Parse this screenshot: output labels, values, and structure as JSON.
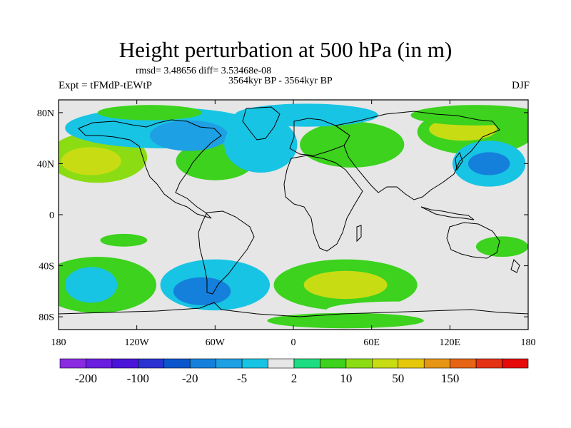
{
  "title": "Height perturbation at 500 hPa (in m)",
  "stats": "rmsd= 3.48656 diff= 3.53468e-08",
  "period": "3564kyr BP - 3564kyr BP",
  "experiment": "Expt = tFMdP-tEWtP",
  "season": "DJF",
  "map": {
    "lon_range": [
      -180,
      180
    ],
    "lat_range": [
      -90,
      90
    ],
    "projection": "cylindrical equidistant",
    "background_color": "#e6e6e6",
    "lon_ticks": [
      {
        "value": -180,
        "label": "180"
      },
      {
        "value": -120,
        "label": "120W"
      },
      {
        "value": -60,
        "label": "60W"
      },
      {
        "value": 0,
        "label": "0"
      },
      {
        "value": 60,
        "label": "60E"
      },
      {
        "value": 120,
        "label": "120E"
      },
      {
        "value": 180,
        "label": "180"
      }
    ],
    "lat_ticks": [
      {
        "value": 80,
        "label": "80N"
      },
      {
        "value": 40,
        "label": "40N"
      },
      {
        "value": 0,
        "label": "0"
      },
      {
        "value": -40,
        "label": "40S"
      },
      {
        "value": -80,
        "label": "80S"
      }
    ]
  },
  "colorbar": {
    "colors": [
      "#8a2be2",
      "#6a1ee0",
      "#4b14d8",
      "#2a32d2",
      "#0a56cc",
      "#1480dc",
      "#1ea0e4",
      "#18c4e4",
      "#e6e6e6",
      "#1edc82",
      "#3cd21e",
      "#8cdc14",
      "#c8dc14",
      "#e6c80a",
      "#e69614",
      "#e66414",
      "#e63214",
      "#e60a0a"
    ],
    "labels": [
      {
        "index": 1,
        "text": "-200"
      },
      {
        "index": 3,
        "text": "-100"
      },
      {
        "index": 5,
        "text": "-20"
      },
      {
        "index": 7,
        "text": "-5"
      },
      {
        "index": 9,
        "text": "2"
      },
      {
        "index": 11,
        "text": "10"
      },
      {
        "index": 13,
        "text": "50"
      },
      {
        "index": 15,
        "text": "150"
      }
    ]
  },
  "anomalies": [
    {
      "lon": -150,
      "lat": 45,
      "rx": 38,
      "ry": 20,
      "level": 11
    },
    {
      "lon": -155,
      "lat": 42,
      "rx": 23,
      "ry": 11,
      "level": 12
    },
    {
      "lon": -60,
      "lat": 42,
      "rx": 30,
      "ry": 15,
      "level": 10
    },
    {
      "lon": 45,
      "lat": 55,
      "rx": 40,
      "ry": 18,
      "level": 10
    },
    {
      "lon": 140,
      "lat": 65,
      "rx": 45,
      "ry": 18,
      "level": 10
    },
    {
      "lon": 130,
      "lat": 67,
      "rx": 26,
      "ry": 9,
      "level": 12
    },
    {
      "lon": 140,
      "lat": 78,
      "rx": 50,
      "ry": 8,
      "level": 10
    },
    {
      "lon": 150,
      "lat": 40,
      "rx": 28,
      "ry": 18,
      "level": 7
    },
    {
      "lon": 150,
      "lat": 40,
      "rx": 16,
      "ry": 9,
      "level": 5
    },
    {
      "lon": -100,
      "lat": 68,
      "rx": 75,
      "ry": 16,
      "level": 7
    },
    {
      "lon": -80,
      "lat": 62,
      "rx": 30,
      "ry": 12,
      "level": 6
    },
    {
      "lon": -25,
      "lat": 55,
      "rx": 28,
      "ry": 22,
      "level": 7
    },
    {
      "lon": 10,
      "lat": 78,
      "rx": 55,
      "ry": 9,
      "level": 7
    },
    {
      "lon": -110,
      "lat": 80,
      "rx": 40,
      "ry": 6,
      "level": 10
    },
    {
      "lon": 90,
      "lat": 20,
      "rx": 12,
      "ry": 7,
      "level": 8
    },
    {
      "lon": 35,
      "lat": 25,
      "rx": 14,
      "ry": 7,
      "level": 8
    },
    {
      "lon": -130,
      "lat": -20,
      "rx": 18,
      "ry": 5,
      "level": 10
    },
    {
      "lon": -150,
      "lat": -55,
      "rx": 45,
      "ry": 22,
      "level": 10
    },
    {
      "lon": -155,
      "lat": -55,
      "rx": 20,
      "ry": 14,
      "level": 7
    },
    {
      "lon": -60,
      "lat": -55,
      "rx": 42,
      "ry": 20,
      "level": 7
    },
    {
      "lon": -70,
      "lat": -60,
      "rx": 22,
      "ry": 11,
      "level": 5
    },
    {
      "lon": 0,
      "lat": -30,
      "rx": 30,
      "ry": 8,
      "level": 8
    },
    {
      "lon": 40,
      "lat": -55,
      "rx": 55,
      "ry": 20,
      "level": 10
    },
    {
      "lon": 40,
      "lat": -55,
      "rx": 32,
      "ry": 11,
      "level": 12
    },
    {
      "lon": 80,
      "lat": -75,
      "rx": 55,
      "ry": 7,
      "level": 8
    },
    {
      "lon": 40,
      "lat": -83,
      "rx": 60,
      "ry": 6,
      "level": 10
    },
    {
      "lon": 160,
      "lat": -25,
      "rx": 20,
      "ry": 8,
      "level": 10
    },
    {
      "lon": 165,
      "lat": -50,
      "rx": 22,
      "ry": 15,
      "level": 8
    }
  ]
}
